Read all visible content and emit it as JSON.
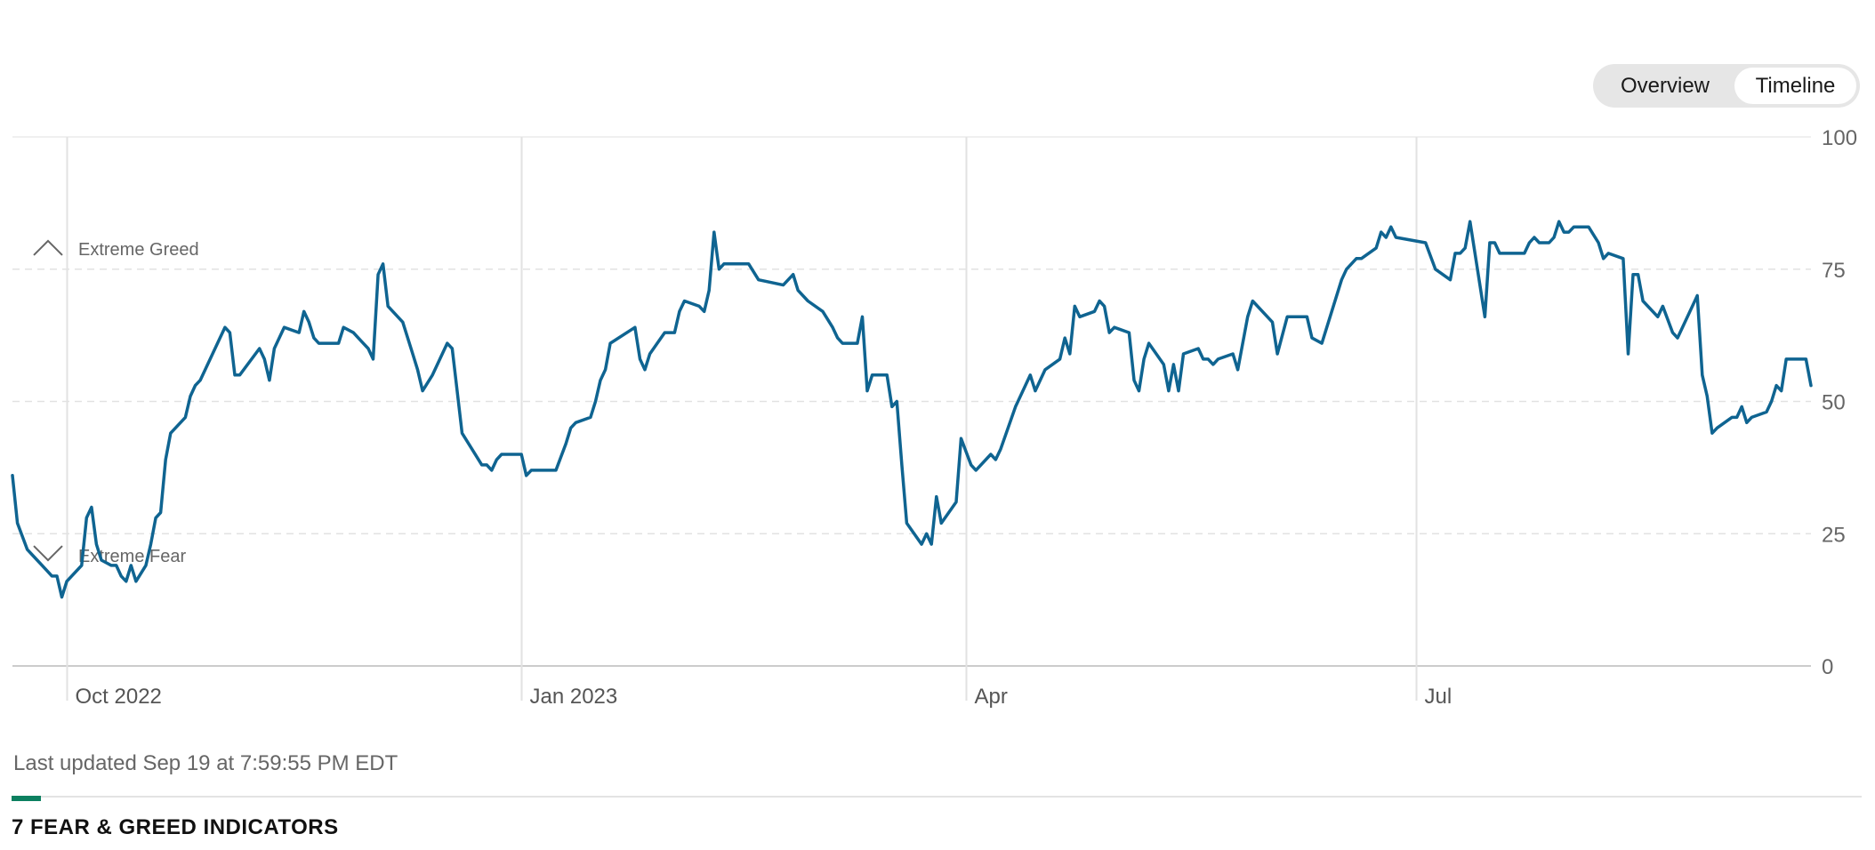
{
  "view_toggle": {
    "options": [
      "Overview",
      "Timeline"
    ],
    "selected": "Timeline"
  },
  "footer": {
    "last_updated": "Last updated Sep 19 at 7:59:55 PM EDT",
    "section_heading": "7 FEAR & GREED INDICATORS"
  },
  "chart_data": {
    "type": "line",
    "x_axis": {
      "type": "date",
      "range": [
        "2022-09-20",
        "2023-09-19"
      ]
    },
    "y_axis": {
      "range": [
        0,
        100
      ],
      "ticks": [
        0,
        25,
        50,
        75,
        100
      ],
      "position": "right"
    },
    "x_ticks": [
      {
        "date": "2022-10-01",
        "label": "Oct 2022"
      },
      {
        "date": "2023-01-01",
        "label": "Jan 2023"
      },
      {
        "date": "2023-04-01",
        "label": "Apr"
      },
      {
        "date": "2023-07-01",
        "label": "Jul"
      }
    ],
    "zone_labels": [
      {
        "label": "Extreme Greed",
        "icon": "chevron-up-icon",
        "level": 79
      },
      {
        "label": "Extreme Fear",
        "icon": "chevron-down-icon",
        "level": 21
      }
    ],
    "grid": {
      "horizontal": "dashed",
      "vertical": "solid at month ticks"
    },
    "color": "#0f6491",
    "series": [
      {
        "values": [
          [
            "2022-09-20",
            36
          ],
          [
            "2022-09-21",
            27
          ],
          [
            "2022-09-23",
            22
          ],
          [
            "2022-09-25",
            20
          ],
          [
            "2022-09-27",
            18
          ],
          [
            "2022-09-28",
            17
          ],
          [
            "2022-09-29",
            17
          ],
          [
            "2022-09-30",
            13
          ],
          [
            "2022-10-01",
            16
          ],
          [
            "2022-10-04",
            19
          ],
          [
            "2022-10-05",
            28
          ],
          [
            "2022-10-06",
            30
          ],
          [
            "2022-10-07",
            23
          ],
          [
            "2022-10-08",
            20
          ],
          [
            "2022-10-10",
            19
          ],
          [
            "2022-10-11",
            19
          ],
          [
            "2022-10-12",
            17
          ],
          [
            "2022-10-13",
            16
          ],
          [
            "2022-10-14",
            19
          ],
          [
            "2022-10-15",
            16
          ],
          [
            "2022-10-17",
            19
          ],
          [
            "2022-10-18",
            23
          ],
          [
            "2022-10-19",
            28
          ],
          [
            "2022-10-20",
            29
          ],
          [
            "2022-10-21",
            39
          ],
          [
            "2022-10-22",
            44
          ],
          [
            "2022-10-24",
            46
          ],
          [
            "2022-10-25",
            47
          ],
          [
            "2022-10-26",
            51
          ],
          [
            "2022-10-27",
            53
          ],
          [
            "2022-10-28",
            54
          ],
          [
            "2022-11-02",
            64
          ],
          [
            "2022-11-03",
            63
          ],
          [
            "2022-11-04",
            55
          ],
          [
            "2022-11-05",
            55
          ],
          [
            "2022-11-09",
            60
          ],
          [
            "2022-11-10",
            58
          ],
          [
            "2022-11-11",
            54
          ],
          [
            "2022-11-12",
            60
          ],
          [
            "2022-11-14",
            64
          ],
          [
            "2022-11-17",
            63
          ],
          [
            "2022-11-18",
            67
          ],
          [
            "2022-11-19",
            65
          ],
          [
            "2022-11-20",
            62
          ],
          [
            "2022-11-21",
            61
          ],
          [
            "2022-11-24",
            61
          ],
          [
            "2022-11-25",
            61
          ],
          [
            "2022-11-26",
            64
          ],
          [
            "2022-11-28",
            63
          ],
          [
            "2022-11-30",
            61
          ],
          [
            "2022-12-01",
            60
          ],
          [
            "2022-12-02",
            58
          ],
          [
            "2022-12-03",
            74
          ],
          [
            "2022-12-04",
            76
          ],
          [
            "2022-12-05",
            68
          ],
          [
            "2022-12-08",
            65
          ],
          [
            "2022-12-10",
            59
          ],
          [
            "2022-12-11",
            56
          ],
          [
            "2022-12-12",
            52
          ],
          [
            "2022-12-14",
            55
          ],
          [
            "2022-12-17",
            61
          ],
          [
            "2022-12-18",
            60
          ],
          [
            "2022-12-20",
            44
          ],
          [
            "2022-12-24",
            38
          ],
          [
            "2022-12-25",
            38
          ],
          [
            "2022-12-26",
            37
          ],
          [
            "2022-12-27",
            39
          ],
          [
            "2022-12-28",
            40
          ],
          [
            "2023-01-01",
            40
          ],
          [
            "2023-01-02",
            36
          ],
          [
            "2023-01-03",
            37
          ],
          [
            "2023-01-04",
            37
          ],
          [
            "2023-01-08",
            37
          ],
          [
            "2023-01-10",
            42
          ],
          [
            "2023-01-11",
            45
          ],
          [
            "2023-01-12",
            46
          ],
          [
            "2023-01-15",
            47
          ],
          [
            "2023-01-16",
            50
          ],
          [
            "2023-01-17",
            54
          ],
          [
            "2023-01-18",
            56
          ],
          [
            "2023-01-19",
            61
          ],
          [
            "2023-01-24",
            64
          ],
          [
            "2023-01-25",
            58
          ],
          [
            "2023-01-26",
            56
          ],
          [
            "2023-01-27",
            59
          ],
          [
            "2023-01-30",
            63
          ],
          [
            "2023-01-31",
            63
          ],
          [
            "2023-02-01",
            63
          ],
          [
            "2023-02-02",
            67
          ],
          [
            "2023-02-03",
            69
          ],
          [
            "2023-02-06",
            68
          ],
          [
            "2023-02-07",
            67
          ],
          [
            "2023-02-08",
            71
          ],
          [
            "2023-02-09",
            82
          ],
          [
            "2023-02-10",
            75
          ],
          [
            "2023-02-11",
            76
          ],
          [
            "2023-02-15",
            76
          ],
          [
            "2023-02-16",
            76
          ],
          [
            "2023-02-18",
            73
          ],
          [
            "2023-02-23",
            72
          ],
          [
            "2023-02-24",
            73
          ],
          [
            "2023-02-25",
            74
          ],
          [
            "2023-02-26",
            71
          ],
          [
            "2023-02-28",
            69
          ],
          [
            "2023-03-03",
            67
          ],
          [
            "2023-03-05",
            64
          ],
          [
            "2023-03-06",
            62
          ],
          [
            "2023-03-07",
            61
          ],
          [
            "2023-03-10",
            61
          ],
          [
            "2023-03-11",
            66
          ],
          [
            "2023-03-12",
            52
          ],
          [
            "2023-03-13",
            55
          ],
          [
            "2023-03-16",
            55
          ],
          [
            "2023-03-17",
            49
          ],
          [
            "2023-03-18",
            50
          ],
          [
            "2023-03-19",
            38
          ],
          [
            "2023-03-20",
            27
          ],
          [
            "2023-03-23",
            23
          ],
          [
            "2023-03-24",
            25
          ],
          [
            "2023-03-25",
            23
          ],
          [
            "2023-03-26",
            32
          ],
          [
            "2023-03-27",
            27
          ],
          [
            "2023-03-30",
            31
          ],
          [
            "2023-03-31",
            43
          ],
          [
            "2023-04-02",
            38
          ],
          [
            "2023-04-03",
            37
          ],
          [
            "2023-04-06",
            40
          ],
          [
            "2023-04-07",
            39
          ],
          [
            "2023-04-08",
            41
          ],
          [
            "2023-04-11",
            49
          ],
          [
            "2023-04-14",
            55
          ],
          [
            "2023-04-15",
            52
          ],
          [
            "2023-04-17",
            56
          ],
          [
            "2023-04-20",
            58
          ],
          [
            "2023-04-21",
            62
          ],
          [
            "2023-04-22",
            59
          ],
          [
            "2023-04-23",
            68
          ],
          [
            "2023-04-24",
            66
          ],
          [
            "2023-04-27",
            67
          ],
          [
            "2023-04-28",
            69
          ],
          [
            "2023-04-29",
            68
          ],
          [
            "2023-04-30",
            63
          ],
          [
            "2023-05-01",
            64
          ],
          [
            "2023-05-04",
            63
          ],
          [
            "2023-05-05",
            54
          ],
          [
            "2023-05-06",
            52
          ],
          [
            "2023-05-07",
            58
          ],
          [
            "2023-05-08",
            61
          ],
          [
            "2023-05-11",
            57
          ],
          [
            "2023-05-12",
            52
          ],
          [
            "2023-05-13",
            57
          ],
          [
            "2023-05-14",
            52
          ],
          [
            "2023-05-15",
            59
          ],
          [
            "2023-05-18",
            60
          ],
          [
            "2023-05-19",
            58
          ],
          [
            "2023-05-20",
            58
          ],
          [
            "2023-05-21",
            57
          ],
          [
            "2023-05-22",
            58
          ],
          [
            "2023-05-25",
            59
          ],
          [
            "2023-05-26",
            56
          ],
          [
            "2023-05-28",
            66
          ],
          [
            "2023-05-29",
            69
          ],
          [
            "2023-06-02",
            65
          ],
          [
            "2023-06-03",
            59
          ],
          [
            "2023-06-05",
            66
          ],
          [
            "2023-06-09",
            66
          ],
          [
            "2023-06-10",
            62
          ],
          [
            "2023-06-12",
            61
          ],
          [
            "2023-06-16",
            73
          ],
          [
            "2023-06-17",
            75
          ],
          [
            "2023-06-19",
            77
          ],
          [
            "2023-06-20",
            77
          ],
          [
            "2023-06-23",
            79
          ],
          [
            "2023-06-24",
            82
          ],
          [
            "2023-06-25",
            81
          ],
          [
            "2023-06-26",
            83
          ],
          [
            "2023-06-27",
            81
          ],
          [
            "2023-07-03",
            80
          ],
          [
            "2023-07-05",
            75
          ],
          [
            "2023-07-08",
            73
          ],
          [
            "2023-07-09",
            78
          ],
          [
            "2023-07-10",
            78
          ],
          [
            "2023-07-11",
            79
          ],
          [
            "2023-07-12",
            84
          ],
          [
            "2023-07-15",
            66
          ],
          [
            "2023-07-16",
            80
          ],
          [
            "2023-07-17",
            80
          ],
          [
            "2023-07-18",
            78
          ],
          [
            "2023-07-23",
            78
          ],
          [
            "2023-07-24",
            80
          ],
          [
            "2023-07-25",
            81
          ],
          [
            "2023-07-26",
            80
          ],
          [
            "2023-07-28",
            80
          ],
          [
            "2023-07-29",
            81
          ],
          [
            "2023-07-30",
            84
          ],
          [
            "2023-07-31",
            82
          ],
          [
            "2023-08-01",
            82
          ],
          [
            "2023-08-02",
            83
          ],
          [
            "2023-08-05",
            83
          ],
          [
            "2023-08-07",
            80
          ],
          [
            "2023-08-08",
            77
          ],
          [
            "2023-08-09",
            78
          ],
          [
            "2023-08-12",
            77
          ],
          [
            "2023-08-13",
            59
          ],
          [
            "2023-08-14",
            74
          ],
          [
            "2023-08-15",
            74
          ],
          [
            "2023-08-16",
            69
          ],
          [
            "2023-08-19",
            66
          ],
          [
            "2023-08-20",
            68
          ],
          [
            "2023-08-22",
            63
          ],
          [
            "2023-08-23",
            62
          ],
          [
            "2023-08-27",
            70
          ],
          [
            "2023-08-28",
            55
          ],
          [
            "2023-08-29",
            51
          ],
          [
            "2023-08-30",
            44
          ],
          [
            "2023-08-31",
            45
          ],
          [
            "2023-09-03",
            47
          ],
          [
            "2023-09-04",
            47
          ],
          [
            "2023-09-05",
            49
          ],
          [
            "2023-09-06",
            46
          ],
          [
            "2023-09-07",
            47
          ],
          [
            "2023-09-10",
            48
          ],
          [
            "2023-09-11",
            50
          ],
          [
            "2023-09-12",
            53
          ],
          [
            "2023-09-13",
            52
          ],
          [
            "2023-09-14",
            58
          ],
          [
            "2023-09-18",
            58
          ],
          [
            "2023-09-19",
            53
          ]
        ]
      }
    ]
  }
}
